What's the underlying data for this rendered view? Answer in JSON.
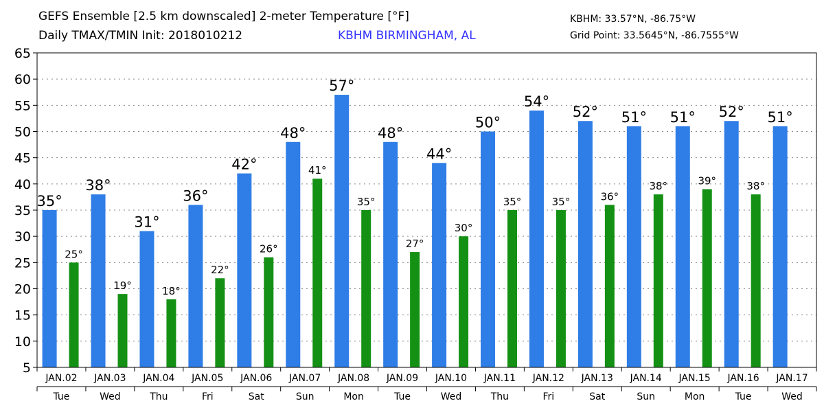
{
  "header": {
    "title_line1": "GEFS Ensemble [2.5 km downscaled] 2-meter Temperature [°F]",
    "title_line2": "Daily TMAX/TMIN Init: 2018010212",
    "station_name": "KBHM BIRMINGHAM, AL",
    "station_coords": "KBHM: 33.57°N, -86.75°W",
    "grid_point": "Grid Point: 33.5645°N, -86.7555°W"
  },
  "colors": {
    "tmax": "#2f7de6",
    "tmin": "#149114",
    "station": "#3333ff"
  },
  "chart_data": {
    "type": "bar",
    "title": "GEFS Ensemble [2.5 km downscaled] 2-meter Temperature [°F]",
    "xlabel": "",
    "ylabel": "",
    "ylim": [
      5,
      65
    ],
    "yticks": [
      5,
      10,
      15,
      20,
      25,
      30,
      35,
      40,
      45,
      50,
      55,
      60,
      65
    ],
    "grid": true,
    "categories": [
      "JAN.02",
      "JAN.03",
      "JAN.04",
      "JAN.05",
      "JAN.06",
      "JAN.07",
      "JAN.08",
      "JAN.09",
      "JAN.10",
      "JAN.11",
      "JAN.12",
      "JAN.13",
      "JAN.14",
      "JAN.15",
      "JAN.16",
      "JAN.17"
    ],
    "days": [
      "Tue",
      "Wed",
      "Thu",
      "Fri",
      "Sat",
      "Sun",
      "Mon",
      "Tue",
      "Wed",
      "Thu",
      "Fri",
      "Sat",
      "Sun",
      "Mon",
      "Tue",
      "Wed"
    ],
    "tmax": [
      35,
      38,
      31,
      36,
      42,
      48,
      57,
      48,
      44,
      50,
      54,
      52,
      51,
      51,
      52,
      51
    ],
    "tmin": [
      25,
      19,
      18,
      22,
      26,
      41,
      35,
      27,
      30,
      35,
      35,
      36,
      38,
      39,
      38,
      null
    ],
    "tmax_labels": [
      "35°",
      "38°",
      "31°",
      "36°",
      "42°",
      "48°",
      "57°",
      "48°",
      "44°",
      "50°",
      "54°",
      "52°",
      "51°",
      "51°",
      "52°",
      "51°"
    ],
    "tmin_labels": [
      "25°",
      "19°",
      "18°",
      "22°",
      "26°",
      "41°",
      "35°",
      "27°",
      "30°",
      "35°",
      "35°",
      "36°",
      "38°",
      "39°",
      "38°",
      ""
    ]
  }
}
